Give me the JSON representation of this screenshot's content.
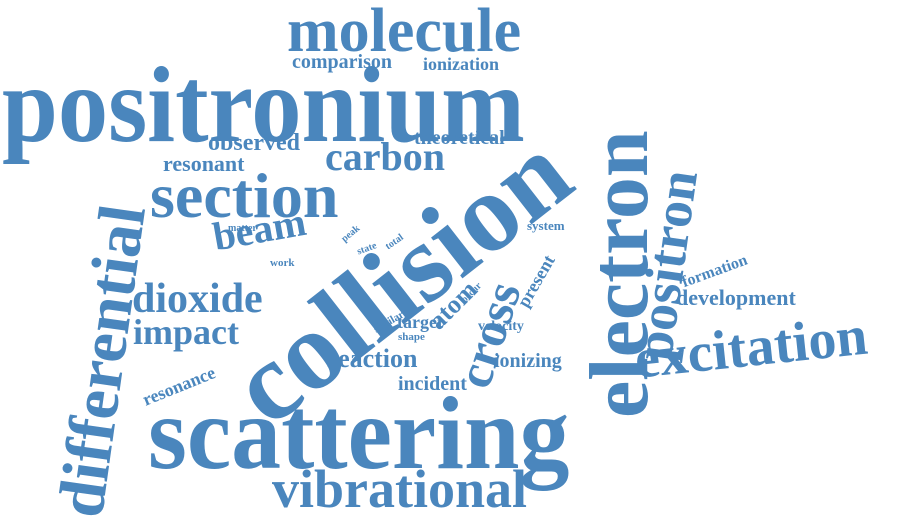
{
  "color": "#4a86bd",
  "words": {
    "positronium": "positronium",
    "molecule": "molecule",
    "collision": "collision",
    "scattering": "scattering",
    "section": "section",
    "electron": "electron",
    "differential": "differential",
    "vibrational": "vibrational",
    "excitation": "excitation",
    "positron": "positron",
    "dioxide": "dioxide",
    "carbon": "carbon",
    "cross": "cross",
    "beam": "beam",
    "impact": "impact",
    "comparison": "comparison",
    "ionization": "ionization",
    "observed": "observed",
    "theoretical": "theoretical",
    "resonant": "resonant",
    "reaction": "reaction",
    "development": "development",
    "atom": "atom",
    "present": "present",
    "formation": "formation",
    "resonance": "resonance",
    "incident": "incident",
    "ionizing": "ionizing",
    "target": "target",
    "velocity": "velocity",
    "system": "system",
    "matter": "matter",
    "peak": "peak",
    "state": "state",
    "total": "total",
    "work": "work",
    "occur": "occur",
    "similar": "similar",
    "shape": "shape"
  }
}
